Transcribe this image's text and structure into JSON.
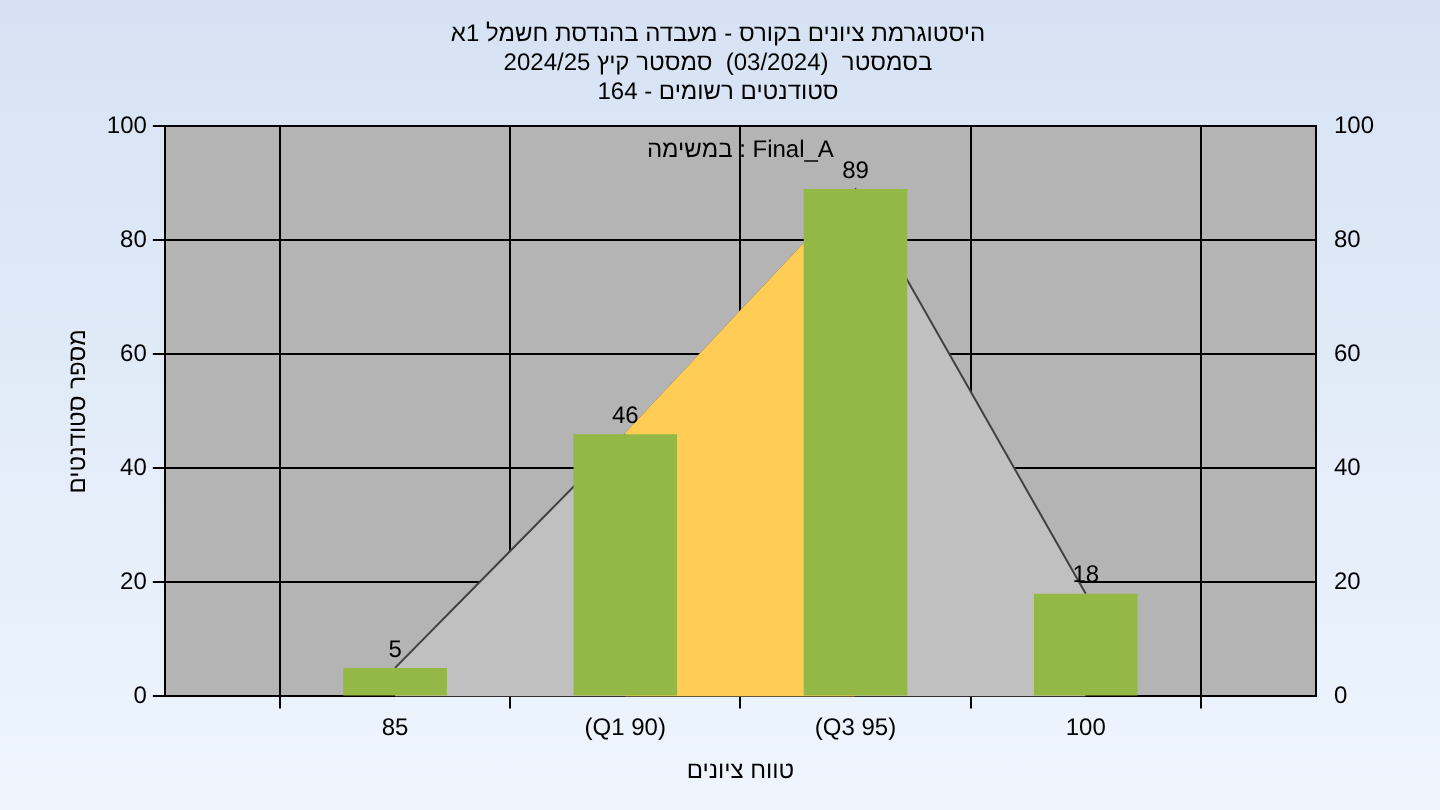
{
  "chart_data": {
    "type": "bar",
    "title": "היסטוגרמת ציונים בקורס - מעבדה בהנדסת חשמל 1א",
    "subtitle": "בסמסטר  (03/2024)  סמסטר קיץ 2024/25\nסטודנטים רשומים - 164",
    "xlabel": "טווח ציונים",
    "ylabel": "מספר סטודנטים",
    "annotations": [
      "במשימה : Final_A"
    ],
    "categories": [
      "85",
      "(Q1 90)",
      "(Q3 95)",
      "100"
    ],
    "series": [
      {
        "type": "area",
        "color": "#c0c0c0",
        "values": [
          5,
          46,
          89,
          18
        ]
      },
      {
        "type": "area",
        "color": "#ffcc55",
        "values": [
          null,
          46,
          89,
          null
        ]
      },
      {
        "color": "#94b845",
        "values": [
          5,
          46,
          89,
          18
        ],
        "value_labels": [
          "5",
          "46",
          "89",
          "18"
        ]
      }
    ],
    "ylim": [
      0,
      100
    ],
    "yticks": [
      0,
      20,
      40,
      60,
      80,
      100
    ],
    "y2lim": [
      0,
      100
    ],
    "y2ticks": [
      0,
      20,
      40,
      60,
      80,
      100
    ],
    "grid": true,
    "legend": false
  }
}
